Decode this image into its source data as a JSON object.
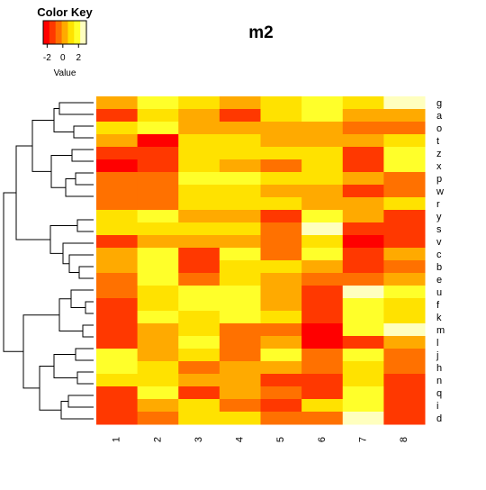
{
  "chart_data": {
    "type": "heatmap",
    "title": "m2",
    "columns": [
      "1",
      "2",
      "3",
      "4",
      "5",
      "6",
      "7",
      "8"
    ],
    "rows": [
      "g",
      "a",
      "o",
      "t",
      "z",
      "x",
      "p",
      "w",
      "r",
      "y",
      "s",
      "v",
      "c",
      "b",
      "e",
      "u",
      "f",
      "k",
      "m",
      "l",
      "j",
      "h",
      "n",
      "q",
      "i",
      "d"
    ],
    "values": [
      [
        0.5,
        1.5,
        1.0,
        0.5,
        1.0,
        2.2,
        1.0,
        2.8
      ],
      [
        -1.3,
        1.0,
        0.5,
        -1.2,
        1.3,
        1.5,
        0.3,
        0.3
      ],
      [
        0.8,
        1.6,
        0.0,
        0.5,
        0.3,
        0.5,
        -0.2,
        -0.3
      ],
      [
        0.5,
        -2.0,
        1.0,
        1.2,
        0.3,
        0.5,
        0.2,
        0.8
      ],
      [
        -1.2,
        -1.2,
        1.2,
        1.0,
        1.0,
        0.8,
        -1.0,
        2.2
      ],
      [
        -2.1,
        -1.3,
        1.0,
        0.0,
        -0.5,
        1.0,
        -1.3,
        2.0
      ],
      [
        -0.5,
        -0.2,
        1.6,
        1.6,
        1.0,
        1.0,
        0.3,
        -0.5
      ],
      [
        -0.5,
        -0.3,
        1.3,
        1.0,
        0.5,
        0.5,
        -1.2,
        -0.5
      ],
      [
        -0.2,
        -0.3,
        1.0,
        1.0,
        0.8,
        0.3,
        0.2,
        0.8
      ],
      [
        1.2,
        1.5,
        0.5,
        0.3,
        -1.5,
        1.5,
        0.3,
        -1.2
      ],
      [
        1.2,
        1.0,
        0.8,
        0.8,
        -0.2,
        2.9,
        -1.3,
        -1.5
      ],
      [
        -1.3,
        0.5,
        0.6,
        0.4,
        -0.5,
        1.2,
        -1.8,
        -1.3
      ],
      [
        0.5,
        1.8,
        -1.1,
        1.8,
        -0.2,
        1.8,
        -1.3,
        0.5
      ],
      [
        0.2,
        1.9,
        -1.5,
        1.0,
        1.0,
        0.2,
        -1.0,
        -0.5
      ],
      [
        -0.8,
        1.6,
        -0.5,
        0.7,
        0.2,
        -0.5,
        -0.7,
        0.0
      ],
      [
        -0.3,
        1.2,
        1.8,
        1.8,
        0.5,
        -1.5,
        2.6,
        1.5
      ],
      [
        -1.0,
        1.0,
        2.0,
        2.0,
        0.0,
        -1.5,
        1.6,
        1.0
      ],
      [
        -1.3,
        2.0,
        1.0,
        1.5,
        1.2,
        -1.5,
        1.5,
        1.2
      ],
      [
        -1.3,
        0.5,
        0.8,
        -0.6,
        -0.5,
        -2.0,
        1.5,
        2.5
      ],
      [
        -1.3,
        0.0,
        1.5,
        -0.7,
        0.2,
        -2.0,
        -1.2,
        0.3
      ],
      [
        2.1,
        0.5,
        1.0,
        -0.7,
        2.0,
        -0.5,
        1.6,
        -0.3
      ],
      [
        2.0,
        0.8,
        -0.7,
        0.0,
        0.3,
        -0.5,
        1.0,
        -0.5
      ],
      [
        1.2,
        1.0,
        0.2,
        0.5,
        -1.2,
        -1.0,
        1.3,
        -1.5
      ],
      [
        -1.2,
        2.0,
        -1.3,
        0.3,
        -0.5,
        -1.2,
        1.5,
        -1.5
      ],
      [
        -1.3,
        0.2,
        0.7,
        -0.5,
        -1.0,
        0.8,
        2.0,
        -1.5
      ],
      [
        -1.3,
        -0.5,
        1.0,
        0.8,
        -0.2,
        -0.3,
        2.8,
        -1.0
      ]
    ],
    "color_key": {
      "title": "Color Key",
      "xlabel": "Value",
      "ticks": [
        "-2",
        "0",
        "2"
      ],
      "range": [
        -2.5,
        3
      ],
      "colors": [
        "#FF0000",
        "#FF3800",
        "#FF7100",
        "#FFAA00",
        "#FFE200",
        "#FFFF2A",
        "#FFFFBF"
      ]
    },
    "row_dendrogram": true,
    "grid": false
  }
}
